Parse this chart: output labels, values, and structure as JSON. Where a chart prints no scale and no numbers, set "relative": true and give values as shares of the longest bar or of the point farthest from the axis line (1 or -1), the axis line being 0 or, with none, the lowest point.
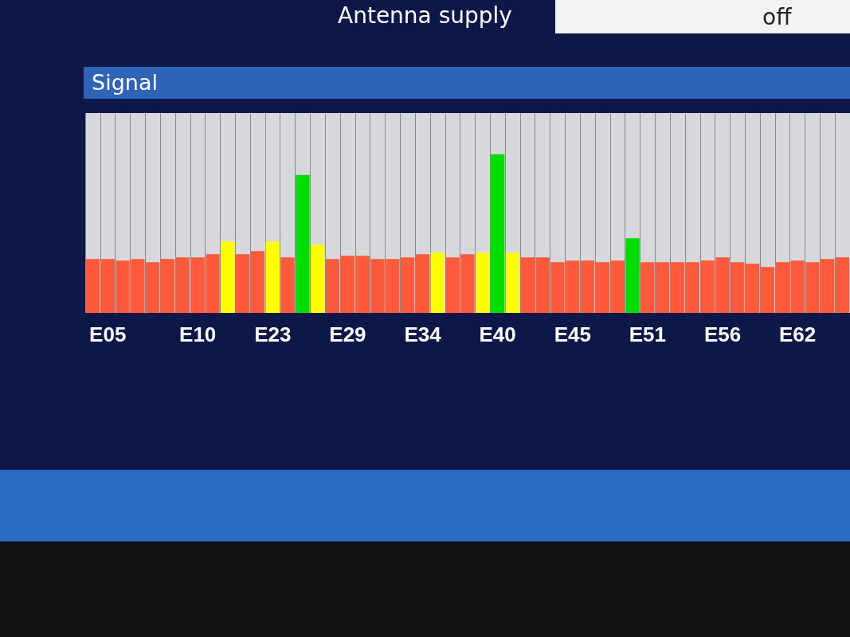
{
  "chart_data": {
    "type": "bar",
    "title": "Signal",
    "relative": true,
    "grid": "x",
    "annotations": [
      "Antenna supply",
      "off"
    ],
    "categories": [
      null,
      "E05",
      null,
      null,
      null,
      null,
      null,
      "E10",
      null,
      null,
      null,
      null,
      "E23",
      null,
      null,
      null,
      null,
      "E29",
      null,
      null,
      null,
      null,
      "E34",
      null,
      null,
      null,
      null,
      "E40",
      null,
      null,
      null,
      null,
      "E45",
      null,
      null,
      null,
      null,
      "E51",
      null,
      null,
      null,
      null,
      "E56",
      null,
      null,
      null,
      null,
      "E62",
      null,
      null,
      null
    ],
    "values": [
      0.34,
      0.34,
      0.33,
      0.34,
      0.32,
      0.34,
      0.35,
      0.35,
      0.37,
      0.45,
      0.37,
      0.39,
      0.45,
      0.35,
      0.87,
      0.43,
      0.34,
      0.36,
      0.36,
      0.34,
      0.34,
      0.35,
      0.37,
      0.38,
      0.35,
      0.37,
      0.38,
      1,
      0.38,
      0.35,
      0.35,
      0.32,
      0.33,
      0.33,
      0.32,
      0.33,
      0.47,
      0.32,
      0.32,
      0.32,
      0.32,
      0.33,
      0.35,
      0.32,
      0.31,
      0.29,
      0.32,
      0.33,
      0.32,
      0.34,
      0.35
    ],
    "colors": [
      "#ff5a3c",
      "#ff5a3c",
      "#ff5a3c",
      "#ff5a3c",
      "#ff5a3c",
      "#ff5a3c",
      "#ff5a3c",
      "#ff5a3c",
      "#ff5a3c",
      "#ffff00",
      "#ff5a3c",
      "#ff5a3c",
      "#ffff00",
      "#ff5a3c",
      "#00dd00",
      "#ffff00",
      "#ff5a3c",
      "#ff5a3c",
      "#ff5a3c",
      "#ff5a3c",
      "#ff5a3c",
      "#ff5a3c",
      "#ff5a3c",
      "#ffff00",
      "#ff5a3c",
      "#ff5a3c",
      "#ffff00",
      "#00dd00",
      "#ffff00",
      "#ff5a3c",
      "#ff5a3c",
      "#ff5a3c",
      "#ff5a3c",
      "#ff5a3c",
      "#ff5a3c",
      "#ff5a3c",
      "#00dd00",
      "#ff5a3c",
      "#ff5a3c",
      "#ff5a3c",
      "#ff5a3c",
      "#ff5a3c",
      "#ff5a3c",
      "#ff5a3c",
      "#ff5a3c",
      "#ff5a3c",
      "#ff5a3c",
      "#ff5a3c",
      "#ff5a3c",
      "#ff5a3c",
      "#ff5a3c"
    ]
  }
}
